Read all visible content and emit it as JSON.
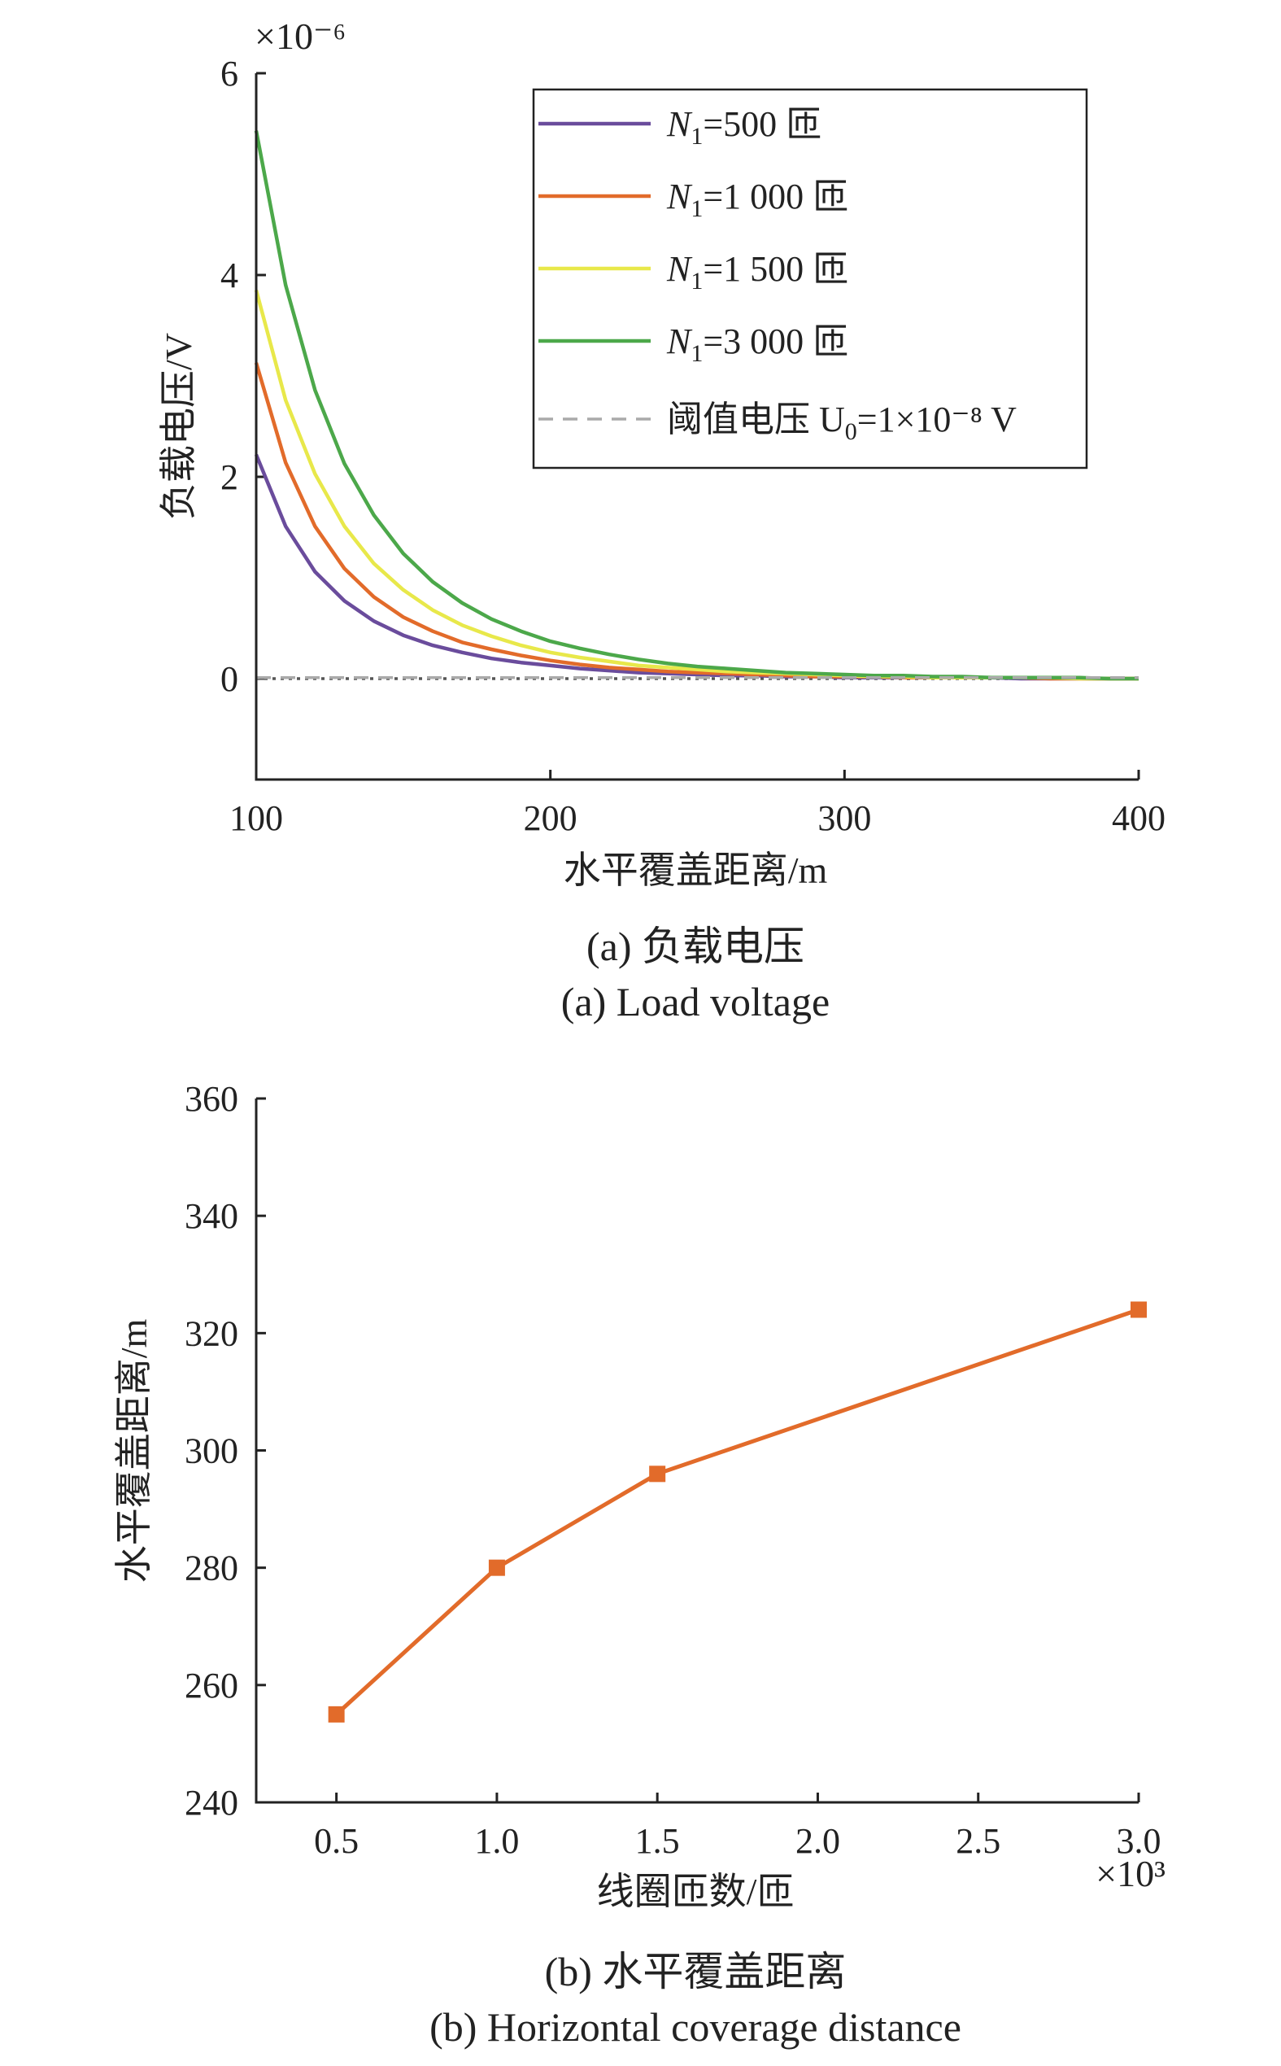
{
  "chart_data": [
    {
      "type": "line",
      "title": "",
      "caption_cn": "(a) 负载电压",
      "caption_en": "(a) Load voltage",
      "xlabel": "水平覆盖距离/m",
      "ylabel": "负载电压/V",
      "y_multiplier": "×10⁻⁶",
      "xlim": [
        100,
        400
      ],
      "ylim": [
        -1,
        6
      ],
      "xticks": [
        100,
        200,
        300,
        400
      ],
      "yticks": [
        0,
        2,
        4,
        6
      ],
      "legend_position": "top-right",
      "x": [
        100,
        110,
        120,
        130,
        140,
        150,
        160,
        170,
        180,
        190,
        200,
        210,
        220,
        230,
        240,
        250,
        260,
        270,
        280,
        290,
        300,
        310,
        320,
        330,
        340,
        350,
        360,
        370,
        380,
        390,
        400
      ],
      "series": [
        {
          "name_prefix": "N",
          "name_sub": "1",
          "name_suffix": "=500 匝",
          "color": "#6a4c9c",
          "dashed": false,
          "values": [
            2.22,
            1.51,
            1.06,
            0.77,
            0.57,
            0.43,
            0.33,
            0.26,
            0.2,
            0.16,
            0.13,
            0.1,
            0.08,
            0.06,
            0.05,
            0.04,
            0.03,
            0.03,
            0.02,
            0.02,
            0.01,
            0.01,
            0.01,
            0.01,
            0.01,
            0.01,
            0.0,
            0.0,
            0.0,
            0.0,
            0.0
          ]
        },
        {
          "name_prefix": "N",
          "name_sub": "1",
          "name_suffix": "=1 000 匝",
          "color": "#e26b2a",
          "dashed": false,
          "values": [
            3.13,
            2.14,
            1.51,
            1.09,
            0.81,
            0.61,
            0.47,
            0.36,
            0.29,
            0.23,
            0.18,
            0.14,
            0.11,
            0.09,
            0.07,
            0.06,
            0.05,
            0.04,
            0.03,
            0.02,
            0.02,
            0.02,
            0.01,
            0.01,
            0.01,
            0.01,
            0.01,
            0.0,
            0.0,
            0.0,
            0.0
          ]
        },
        {
          "name_prefix": "N",
          "name_sub": "1",
          "name_suffix": "=1 500 匝",
          "color": "#e8e84a",
          "dashed": false,
          "values": [
            3.85,
            2.76,
            2.03,
            1.51,
            1.14,
            0.88,
            0.68,
            0.53,
            0.42,
            0.33,
            0.26,
            0.21,
            0.17,
            0.13,
            0.11,
            0.09,
            0.07,
            0.06,
            0.05,
            0.04,
            0.03,
            0.02,
            0.02,
            0.01,
            0.01,
            0.01,
            0.01,
            0.01,
            0.0,
            0.0,
            0.0
          ]
        },
        {
          "name_prefix": "N",
          "name_sub": "1",
          "name_suffix": "=3 000 匝",
          "color": "#4ca84a",
          "dashed": false,
          "values": [
            5.43,
            3.9,
            2.86,
            2.13,
            1.62,
            1.24,
            0.96,
            0.75,
            0.59,
            0.47,
            0.37,
            0.3,
            0.24,
            0.19,
            0.15,
            0.12,
            0.1,
            0.08,
            0.06,
            0.05,
            0.04,
            0.03,
            0.03,
            0.02,
            0.02,
            0.01,
            0.01,
            0.01,
            0.01,
            0.0,
            0.0
          ]
        },
        {
          "name_prefix": "阈值电压 U",
          "name_sub": "0",
          "name_suffix": "=1×10⁻⁸ V",
          "color": "#aaaaaa",
          "dashed": true,
          "values": [
            0.01,
            0.01,
            0.01,
            0.01,
            0.01,
            0.01,
            0.01,
            0.01,
            0.01,
            0.01,
            0.01,
            0.01,
            0.01,
            0.01,
            0.01,
            0.01,
            0.01,
            0.01,
            0.01,
            0.01,
            0.01,
            0.01,
            0.01,
            0.01,
            0.01,
            0.01,
            0.01,
            0.01,
            0.01,
            0.01,
            0.01
          ]
        }
      ]
    },
    {
      "type": "line",
      "title": "",
      "caption_cn": "(b) 水平覆盖距离",
      "caption_en": "(b) Horizontal coverage distance",
      "xlabel": "线圈匝数/匝",
      "ylabel": "水平覆盖距离/m",
      "x_multiplier": "×10³",
      "xlim": [
        0.25,
        3.0
      ],
      "ylim": [
        240,
        360
      ],
      "xticks": [
        0.5,
        1.0,
        1.5,
        2.0,
        2.5,
        3.0
      ],
      "xtick_labels": [
        "0.5",
        "1.0",
        "1.5",
        "2.0",
        "2.5",
        "3.0"
      ],
      "yticks": [
        240,
        260,
        280,
        300,
        320,
        340,
        360
      ],
      "marker": "square",
      "series": [
        {
          "color": "#e26b2a",
          "x": [
            0.5,
            1.0,
            1.5,
            3.0
          ],
          "values": [
            255,
            280,
            296,
            324
          ]
        }
      ]
    }
  ]
}
